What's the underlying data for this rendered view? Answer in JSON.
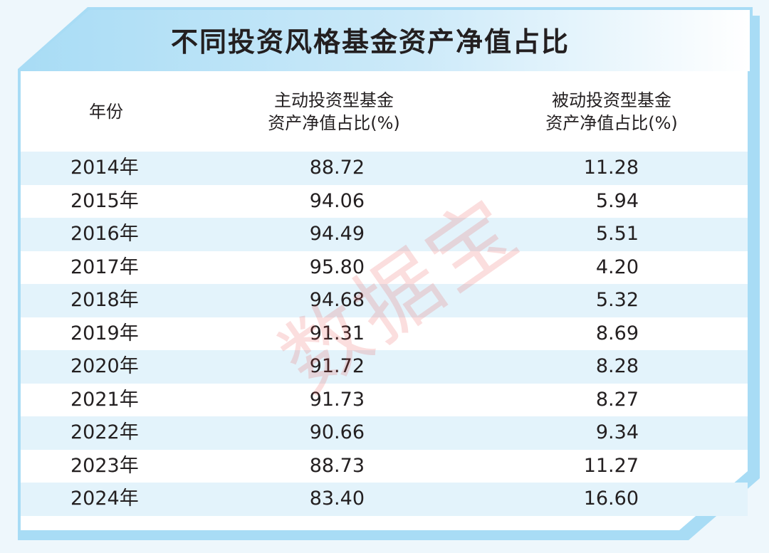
{
  "title": "不同投资风格基金资产净值占比",
  "watermark": "数据宝",
  "colors": {
    "frame": "#a8dcf5",
    "row_alt": "#e3f3fb",
    "background": "#eef7fc",
    "watermark": "#eb4646"
  },
  "chart_data": {
    "type": "table",
    "title": "不同投资风格基金资产净值占比",
    "columns": [
      "年份",
      "主动投资型基金资产净值占比(%)",
      "被动投资型基金资产净值占比(%)"
    ],
    "header_lines": [
      [
        "年份"
      ],
      [
        "主动投资型基金",
        "资产净值占比(%)"
      ],
      [
        "被动投资型基金",
        "资产净值占比(%)"
      ]
    ],
    "rows": [
      [
        "2014年",
        "88.72",
        "11.28"
      ],
      [
        "2015年",
        "94.06",
        "5.94"
      ],
      [
        "2016年",
        "94.49",
        "5.51"
      ],
      [
        "2017年",
        "95.80",
        "4.20"
      ],
      [
        "2018年",
        "94.68",
        "5.32"
      ],
      [
        "2019年",
        "91.31",
        "8.69"
      ],
      [
        "2020年",
        "91.72",
        "8.28"
      ],
      [
        "2021年",
        "91.73",
        "8.27"
      ],
      [
        "2022年",
        "90.66",
        "9.34"
      ],
      [
        "2023年",
        "88.73",
        "11.27"
      ],
      [
        "2024年",
        "83.40",
        "16.60"
      ]
    ]
  }
}
